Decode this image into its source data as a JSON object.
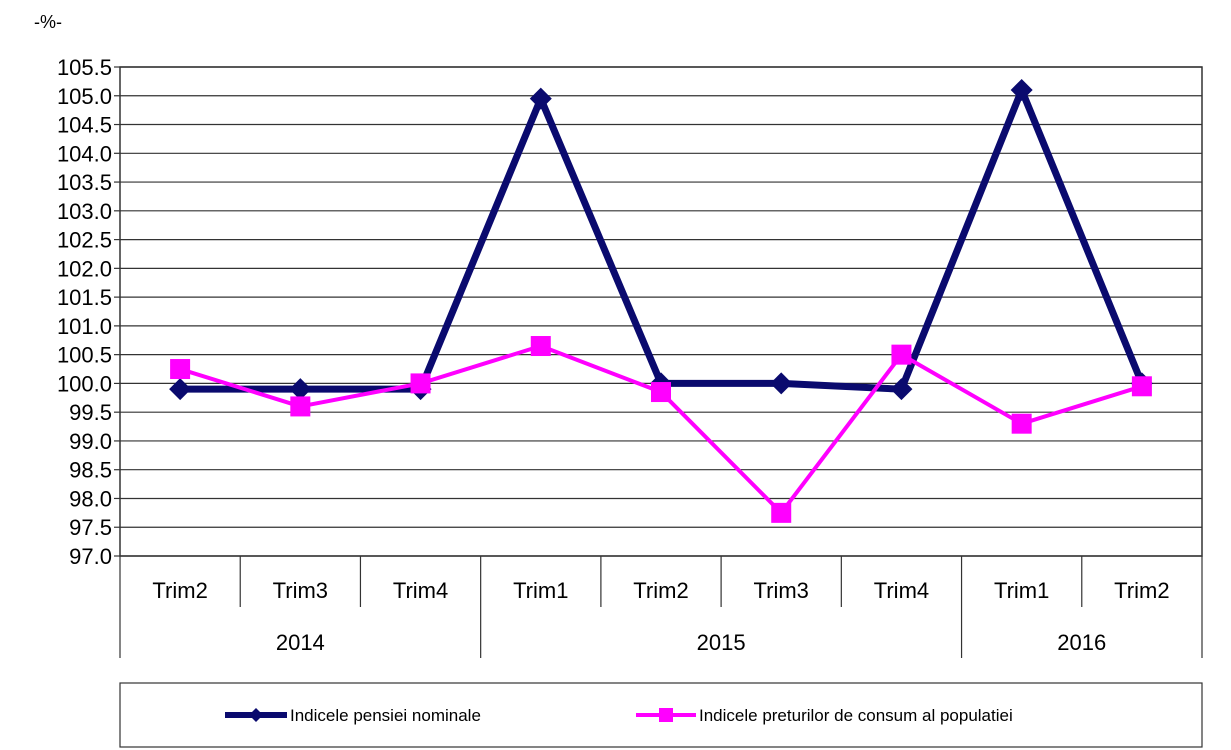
{
  "chart_data": {
    "type": "line",
    "unit_label": "-%-",
    "categories": [
      "Trim2",
      "Trim3",
      "Trim4",
      "Trim1",
      "Trim2",
      "Trim3",
      "Trim4",
      "Trim1",
      "Trim2"
    ],
    "years": [
      {
        "label": "2014",
        "span": 3
      },
      {
        "label": "2015",
        "span": 4
      },
      {
        "label": "2016",
        "span": 2
      }
    ],
    "ylim": [
      97.0,
      105.5
    ],
    "ystep": 0.5,
    "grid": true,
    "legend_position": "bottom",
    "series": [
      {
        "name": "Indicele pensiei nominale",
        "color": "#0a0a6e",
        "marker": "diamond",
        "values": [
          99.9,
          99.9,
          99.9,
          104.95,
          100.0,
          100.0,
          99.9,
          105.1,
          100.0
        ]
      },
      {
        "name": "Indicele preturilor de consum al populatiei",
        "color": "#ff00ff",
        "marker": "square",
        "values": [
          100.25,
          99.6,
          100.0,
          100.65,
          99.85,
          97.75,
          100.5,
          99.3,
          99.95
        ]
      }
    ]
  }
}
